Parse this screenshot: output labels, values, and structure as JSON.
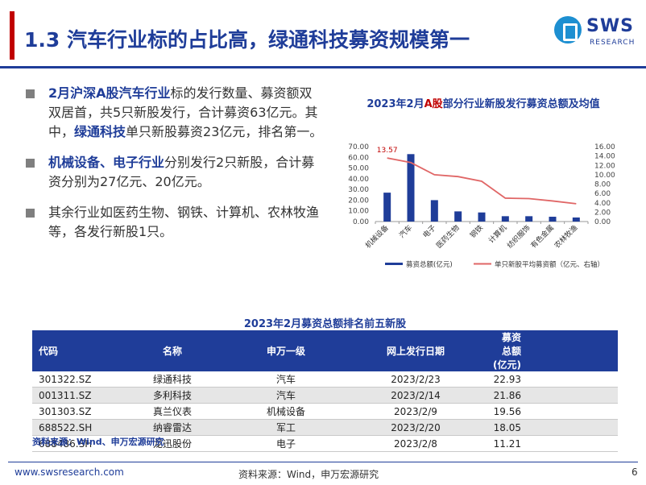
{
  "header": {
    "title": "1.3 汽车行业标的占比高，绿通科技募资规模第一",
    "logo_name": "SWS",
    "logo_sub": "RESEARCH"
  },
  "bullets": [
    {
      "parts": [
        {
          "t": "2月沪深A股汽车行业",
          "hl": true
        },
        {
          "t": "标的发行数量、募资额双双居首，共5只新股发行，合计募资63亿元。其中，",
          "hl": false
        },
        {
          "t": "绿通科技",
          "hl": true
        },
        {
          "t": "单只新股募资23亿元，排名第一。",
          "hl": false
        }
      ]
    },
    {
      "parts": [
        {
          "t": "机械设备、电子行业",
          "hl": true
        },
        {
          "t": "分别发行2只新股，合计募资分别为27亿元、20亿元。",
          "hl": false
        }
      ]
    },
    {
      "parts": [
        {
          "t": "其余行业如医药生物、钢铁、计算机、农林牧渔等，各发行新股1只。",
          "hl": false
        }
      ]
    }
  ],
  "chart_data": {
    "type": "bar",
    "title_pre": "2023年2月",
    "title_red": "A股",
    "title_post": "部分行业新股发行募资总额及均值",
    "categories": [
      "机械设备",
      "汽车",
      "电子",
      "医药生物",
      "钢铁",
      "计算机",
      "纺织服饰",
      "有色金属",
      "农林牧渔"
    ],
    "series": [
      {
        "name": "募资总额(亿元)",
        "type": "bar",
        "axis": "left",
        "color": "#1f3d99",
        "values": [
          27,
          63,
          20,
          9.5,
          8.5,
          5,
          5,
          4.5,
          3.8
        ]
      },
      {
        "name": "单只新股平均募资额（亿元、右轴）",
        "type": "line",
        "axis": "right",
        "color": "#e06666",
        "values": [
          13.57,
          12.6,
          10,
          9.6,
          8.6,
          5,
          4.9,
          4.4,
          3.8
        ]
      }
    ],
    "left_axis": {
      "min": 0,
      "max": 70,
      "ticks": [
        "0.00",
        "10.00",
        "20.00",
        "30.00",
        "40.00",
        "50.00",
        "60.00",
        "70.00"
      ]
    },
    "right_axis": {
      "min": 0,
      "max": 16,
      "ticks": [
        "0.00",
        "2.00",
        "4.00",
        "6.00",
        "8.00",
        "10.00",
        "12.00",
        "14.00",
        "16.00"
      ]
    },
    "annotation": "13.57",
    "grid": false,
    "legend": "bottom"
  },
  "table": {
    "title": "2023年2月募资总额排名前五新股",
    "headers": [
      "代码",
      "名称",
      "申万一级",
      "网上发行日期",
      "募资总额(亿元)"
    ],
    "rows": [
      [
        "301322.SZ",
        "绿通科技",
        "汽车",
        "2023/2/23",
        "22.93"
      ],
      [
        "001311.SZ",
        "多利科技",
        "汽车",
        "2023/2/14",
        "21.86"
      ],
      [
        "301303.SZ",
        "真兰仪表",
        "机械设备",
        "2023/2/9",
        "19.56"
      ],
      [
        "688522.SH",
        "纳睿雷达",
        "军工",
        "2023/2/20",
        "18.05"
      ],
      [
        "688486.SH",
        "龙迅股份",
        "电子",
        "2023/2/8",
        "11.21"
      ]
    ],
    "source": "资料来源：Wind、申万宏源研究"
  },
  "footer": {
    "url": "www.swsresearch.com",
    "source": "资料来源：Wind，申万宏源研究",
    "page": "6"
  }
}
